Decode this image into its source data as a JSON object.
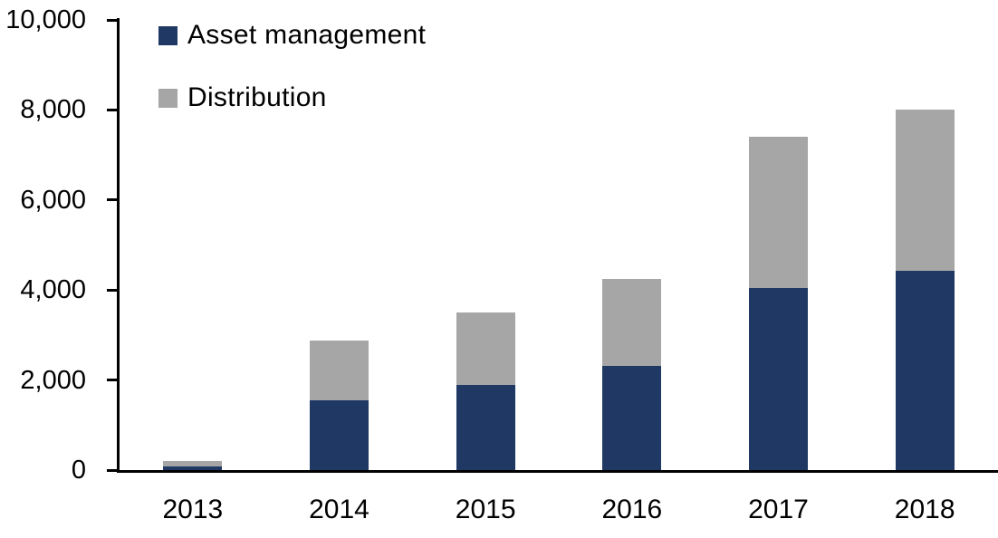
{
  "chart": {
    "background_color": "#ffffff",
    "axis_color": "#000000",
    "text_color": "#000000"
  },
  "chart_data": {
    "type": "bar",
    "stacked": true,
    "title": "",
    "xlabel": "",
    "ylabel": "",
    "categories": [
      "2013",
      "2014",
      "2015",
      "2016",
      "2017",
      "2018"
    ],
    "series": [
      {
        "name": "Asset management",
        "color": "#1F3864",
        "values": [
          80,
          1550,
          1900,
          2320,
          4050,
          4430
        ]
      },
      {
        "name": "Distribution",
        "color": "#A6A6A6",
        "values": [
          120,
          1320,
          1600,
          1930,
          3350,
          3570
        ]
      }
    ],
    "ylim": [
      0,
      10000
    ],
    "yticks": [
      0,
      2000,
      4000,
      6000,
      8000,
      10000
    ],
    "ytick_labels": [
      "0",
      "2,000",
      "4,000",
      "6,000",
      "8,000",
      "10,000"
    ],
    "grid": false,
    "legend_position": "top-left"
  }
}
